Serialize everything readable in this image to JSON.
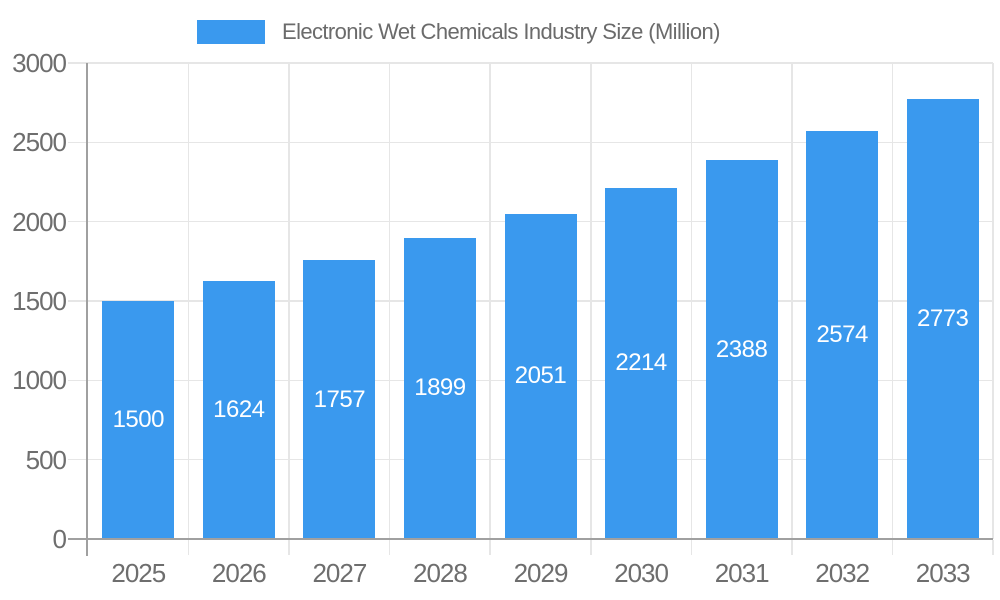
{
  "chart_data": {
    "type": "bar",
    "title": "Electronic Wet Chemicals Industry Size (Million)",
    "categories": [
      "2025",
      "2026",
      "2027",
      "2028",
      "2029",
      "2030",
      "2031",
      "2032",
      "2033"
    ],
    "values": [
      1500,
      1624,
      1757,
      1899,
      2051,
      2214,
      2388,
      2574,
      2773
    ],
    "series_name": "Electronic Wet Chemicals Industry Size (Million)",
    "xlabel": "",
    "ylabel": "",
    "ylim": [
      0,
      3000
    ],
    "yticks": [
      0,
      500,
      1000,
      1500,
      2000,
      2500,
      3000
    ],
    "grid": true,
    "legend_position": "top",
    "value_label_position": "inside-center"
  },
  "colors": {
    "bar": "#3A99EE",
    "grid": "#E6E6E6",
    "axis": "#A0A0A0",
    "tick_label": "#6E6E6E",
    "title": "#6B6B6B",
    "value_label": "#FFFFFF",
    "background": "#FFFFFF"
  }
}
